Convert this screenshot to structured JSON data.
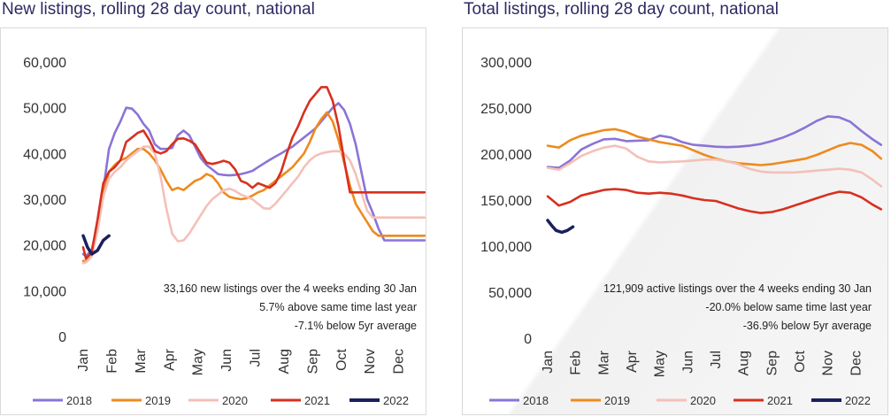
{
  "chart_data": [
    {
      "type": "line",
      "title": "New listings, rolling 28 day count, national",
      "xlabel": "",
      "ylabel": "",
      "ylim": [
        0,
        60000
      ],
      "yticks": [
        "0",
        "10,000",
        "20,000",
        "30,000",
        "40,000",
        "50,000",
        "60,000"
      ],
      "xticks": [
        "Jan",
        "Feb",
        "Mar",
        "Apr",
        "May",
        "Jun",
        "Jul",
        "Aug",
        "Sep",
        "Oct",
        "Nov",
        "Dec"
      ],
      "grid": false,
      "legend_position": "bottom",
      "annotations": [
        "33,160 new listings over the 4 weeks ending 30 Jan",
        "5.7% above same time last year",
        "-7.1% below 5yr average"
      ],
      "series": [
        {
          "name": "2018",
          "color": "#8b74d6",
          "x": [
            0,
            0.1,
            0.3,
            0.5,
            0.7,
            0.9,
            1.1,
            1.3,
            1.5,
            1.7,
            1.9,
            2.1,
            2.3,
            2.5,
            2.7,
            2.9,
            3.1,
            3.3,
            3.5,
            3.7,
            3.9,
            4.1,
            4.3,
            4.5,
            4.7,
            4.9,
            5.1,
            5.3,
            5.5,
            5.7,
            5.9,
            6.1,
            6.3,
            6.5,
            6.7,
            6.9,
            7.1,
            7.3,
            7.5,
            7.7,
            7.9,
            8.1,
            8.3,
            8.5,
            8.7,
            8.9,
            9.1,
            9.3,
            9.5,
            9.7,
            9.9,
            10.1,
            10.3,
            10.5,
            10.7,
            10.9,
            11.1,
            11.3,
            11.5,
            11.7,
            11.9
          ],
          "y": [
            18000,
            17500,
            19000,
            24000,
            32000,
            41000,
            44500,
            47000,
            50000,
            49800,
            48500,
            46500,
            45000,
            42000,
            41000,
            41000,
            41200,
            44000,
            45000,
            44000,
            41500,
            39000,
            37500,
            36500,
            35500,
            35300,
            35200,
            35300,
            35500,
            35800,
            36200,
            37000,
            37800,
            38600,
            39300,
            40000,
            40800,
            41500,
            42500,
            43500,
            44500,
            45500,
            47000,
            48500,
            50000,
            51000,
            49500,
            46500,
            42000,
            36000,
            30000,
            27000,
            23500,
            21000,
            21000,
            21000,
            21000,
            21000,
            21000,
            21000,
            21000
          ]
        },
        {
          "name": "2019",
          "color": "#ee8a1e",
          "x": [
            0,
            0.1,
            0.3,
            0.5,
            0.7,
            0.9,
            1.1,
            1.3,
            1.5,
            1.7,
            1.9,
            2.1,
            2.3,
            2.5,
            2.7,
            2.9,
            3.1,
            3.3,
            3.5,
            3.7,
            3.9,
            4.1,
            4.3,
            4.5,
            4.7,
            4.9,
            5.1,
            5.3,
            5.5,
            5.7,
            5.9,
            6.1,
            6.3,
            6.5,
            6.7,
            6.9,
            7.1,
            7.3,
            7.5,
            7.7,
            7.9,
            8.1,
            8.3,
            8.5,
            8.7,
            8.9,
            9.1,
            9.3,
            9.5,
            9.7,
            9.9,
            10.1,
            10.3,
            10.5,
            10.7,
            10.9,
            11.1,
            11.3,
            11.5,
            11.7,
            11.9
          ],
          "y": [
            16500,
            16500,
            18000,
            24000,
            31000,
            36000,
            37500,
            38500,
            39000,
            40000,
            41000,
            41000,
            40000,
            38500,
            36500,
            34000,
            32000,
            32500,
            32000,
            33000,
            34000,
            34500,
            35500,
            35000,
            33500,
            31500,
            30500,
            30200,
            30000,
            30200,
            30800,
            31500,
            32000,
            33000,
            34000,
            35000,
            36000,
            37000,
            38500,
            40000,
            42500,
            45500,
            47500,
            49000,
            47000,
            43000,
            38000,
            33000,
            29000,
            27000,
            25000,
            23000,
            22000,
            22000,
            22000,
            22000,
            22000,
            22000,
            22000,
            22000,
            22000
          ]
        },
        {
          "name": "2020",
          "color": "#f4c0b8",
          "x": [
            0,
            0.1,
            0.3,
            0.5,
            0.7,
            0.9,
            1.1,
            1.3,
            1.5,
            1.7,
            1.9,
            2.1,
            2.3,
            2.5,
            2.7,
            2.9,
            3.1,
            3.3,
            3.5,
            3.7,
            3.9,
            4.1,
            4.3,
            4.5,
            4.7,
            4.9,
            5.1,
            5.3,
            5.5,
            5.7,
            5.9,
            6.1,
            6.3,
            6.5,
            6.7,
            6.9,
            7.1,
            7.3,
            7.5,
            7.7,
            7.9,
            8.1,
            8.3,
            8.5,
            8.7,
            8.9,
            9.1,
            9.3,
            9.5,
            9.7,
            9.9,
            10.1,
            10.3,
            10.5,
            10.7,
            10.9,
            11.1,
            11.3,
            11.5,
            11.7,
            11.9
          ],
          "y": [
            16000,
            16200,
            17500,
            23000,
            30500,
            34500,
            36000,
            37000,
            38500,
            39500,
            40500,
            41500,
            41500,
            40000,
            35000,
            28000,
            22500,
            20800,
            21000,
            22500,
            24500,
            26500,
            28500,
            30000,
            31000,
            32000,
            32300,
            31800,
            31000,
            30500,
            30000,
            29000,
            28000,
            27900,
            29000,
            30500,
            32000,
            33500,
            35000,
            37000,
            38500,
            39500,
            40000,
            40300,
            40500,
            40500,
            40000,
            38500,
            35500,
            31500,
            27500,
            26000,
            26000,
            26000,
            26000,
            26000,
            26000,
            26000,
            26000,
            26000,
            26000
          ]
        },
        {
          "name": "2021",
          "color": "#d7301f",
          "x": [
            0,
            0.1,
            0.3,
            0.5,
            0.7,
            0.9,
            1.1,
            1.3,
            1.5,
            1.7,
            1.9,
            2.1,
            2.3,
            2.5,
            2.7,
            2.9,
            3.1,
            3.3,
            3.5,
            3.7,
            3.9,
            4.1,
            4.3,
            4.5,
            4.7,
            4.9,
            5.1,
            5.3,
            5.5,
            5.7,
            5.9,
            6.1,
            6.3,
            6.5,
            6.7,
            6.9,
            7.1,
            7.3,
            7.5,
            7.7,
            7.9,
            8.1,
            8.3,
            8.5,
            8.7,
            8.9,
            9.1,
            9.3,
            9.5,
            9.7,
            9.9,
            10.1,
            10.3,
            10.5,
            10.7,
            10.9,
            11.1,
            11.3,
            11.5,
            11.7,
            11.9
          ],
          "y": [
            19500,
            17000,
            18500,
            25500,
            33500,
            36000,
            37000,
            38500,
            42500,
            43500,
            44500,
            45000,
            43000,
            40500,
            40000,
            40500,
            42000,
            43200,
            43300,
            42800,
            42000,
            40000,
            38000,
            37700,
            38000,
            38400,
            38000,
            36500,
            34000,
            33500,
            32500,
            33500,
            33000,
            32500,
            33500,
            36000,
            40000,
            43500,
            46000,
            49000,
            51500,
            53000,
            54500,
            54500,
            51500,
            46000,
            38500,
            31500,
            31500,
            31500,
            31500,
            31500,
            31500,
            31500,
            31500,
            31500,
            31500,
            31500,
            31500,
            31500,
            31500
          ]
        },
        {
          "name": "2022",
          "color": "#1b1f5e",
          "x": [
            0,
            0.15,
            0.3,
            0.5,
            0.7,
            0.9
          ],
          "y": [
            22000,
            19500,
            18000,
            18800,
            21000,
            22000
          ]
        }
      ]
    },
    {
      "type": "line",
      "title": "Total listings, rolling 28 day count, national",
      "xlabel": "",
      "ylabel": "",
      "ylim": [
        0,
        300000
      ],
      "yticks": [
        "0",
        "50,000",
        "100,000",
        "150,000",
        "200,000",
        "250,000",
        "300,000"
      ],
      "xticks": [
        "Jan",
        "Feb",
        "Mar",
        "Apr",
        "May",
        "Jun",
        "Jul",
        "Aug",
        "Sep",
        "Oct",
        "Nov",
        "Dec"
      ],
      "grid": false,
      "legend_position": "bottom",
      "annotations": [
        "121,909 active listings over the 4 weeks ending 30 Jan",
        "-20.0% below same time last year",
        "-36.9% below 5yr average"
      ],
      "series": [
        {
          "name": "2018",
          "color": "#8b74d6",
          "x": [
            0,
            0.4,
            0.8,
            1.2,
            1.6,
            2.0,
            2.4,
            2.8,
            3.2,
            3.6,
            4.0,
            4.4,
            4.8,
            5.2,
            5.6,
            6.0,
            6.4,
            6.8,
            7.2,
            7.6,
            8.0,
            8.4,
            8.8,
            9.2,
            9.6,
            10.0,
            10.4,
            10.8,
            11.2,
            11.6,
            11.9
          ],
          "y": [
            186000,
            185000,
            193000,
            205000,
            211000,
            216000,
            216500,
            214000,
            214500,
            215000,
            220000,
            218000,
            213000,
            210000,
            209000,
            208000,
            207500,
            208000,
            209000,
            211000,
            214000,
            218000,
            223000,
            229000,
            236000,
            241000,
            240000,
            235000,
            225000,
            216000,
            210000
          ]
        },
        {
          "name": "2019",
          "color": "#ee8a1e",
          "x": [
            0,
            0.4,
            0.8,
            1.2,
            1.6,
            2.0,
            2.4,
            2.8,
            3.2,
            3.6,
            4.0,
            4.4,
            4.8,
            5.2,
            5.6,
            6.0,
            6.4,
            6.8,
            7.2,
            7.6,
            8.0,
            8.4,
            8.8,
            9.2,
            9.6,
            10.0,
            10.4,
            10.8,
            11.2,
            11.6,
            11.9
          ],
          "y": [
            209000,
            207000,
            215000,
            220000,
            223000,
            226000,
            227000,
            224000,
            219000,
            216000,
            213000,
            211000,
            209000,
            204000,
            199000,
            195000,
            192000,
            190000,
            189000,
            188000,
            189000,
            191000,
            193000,
            195000,
            199000,
            204000,
            209000,
            212000,
            210000,
            203000,
            195000
          ]
        },
        {
          "name": "2020",
          "color": "#f4c0b8",
          "x": [
            0,
            0.4,
            0.8,
            1.2,
            1.6,
            2.0,
            2.4,
            2.8,
            3.2,
            3.6,
            4.0,
            4.4,
            4.8,
            5.2,
            5.6,
            6.0,
            6.4,
            6.8,
            7.2,
            7.6,
            8.0,
            8.4,
            8.8,
            9.2,
            9.6,
            10.0,
            10.4,
            10.8,
            11.2,
            11.6,
            11.9
          ],
          "y": [
            185000,
            183000,
            190000,
            198000,
            203000,
            207000,
            209000,
            206000,
            197000,
            192000,
            191000,
            191500,
            192000,
            193000,
            194000,
            194000,
            192000,
            189000,
            184000,
            181000,
            180000,
            180000,
            180000,
            181000,
            182000,
            183000,
            184000,
            183000,
            180000,
            172000,
            165000
          ]
        },
        {
          "name": "2021",
          "color": "#d7301f",
          "x": [
            0,
            0.4,
            0.8,
            1.2,
            1.6,
            2.0,
            2.4,
            2.8,
            3.2,
            3.6,
            4.0,
            4.4,
            4.8,
            5.2,
            5.6,
            6.0,
            6.4,
            6.8,
            7.2,
            7.6,
            8.0,
            8.4,
            8.8,
            9.2,
            9.6,
            10.0,
            10.4,
            10.8,
            11.2,
            11.6,
            11.9
          ],
          "y": [
            154000,
            144000,
            148000,
            155000,
            158000,
            161000,
            162000,
            161000,
            158000,
            157000,
            158000,
            157000,
            155000,
            152000,
            150000,
            149000,
            145000,
            141000,
            138000,
            136000,
            137000,
            140000,
            144000,
            148000,
            152000,
            156000,
            159000,
            158000,
            153000,
            145000,
            140000
          ]
        },
        {
          "name": "2022",
          "color": "#1b1f5e",
          "x": [
            0,
            0.15,
            0.3,
            0.5,
            0.7,
            0.9
          ],
          "y": [
            128000,
            122000,
            117000,
            115000,
            117000,
            121000
          ]
        }
      ]
    }
  ]
}
